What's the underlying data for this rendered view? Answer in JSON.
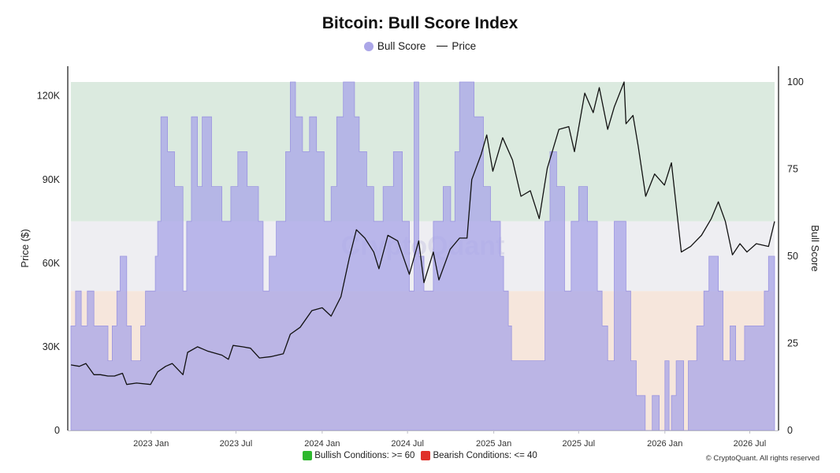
{
  "chart_data": {
    "type": "area",
    "title": "Bitcoin: Bull Score Index",
    "watermark": "CryptoQuant",
    "copyright": "© CryptoQuant. All rights reserved",
    "legend": [
      {
        "name": "Bull Score",
        "marker": "dot",
        "color": "#aba6e8"
      },
      {
        "name": "Price",
        "marker": "line",
        "color": "#111111"
      }
    ],
    "legend_placement": "top-center",
    "ylabel_left": "Price ($)",
    "ylabel_right": "Bull Score",
    "ylim_left": [
      0,
      125000
    ],
    "ylim_right": [
      0,
      100
    ],
    "yticks_left": [
      {
        "v": 0,
        "label": "0"
      },
      {
        "v": 30000,
        "label": "30K"
      },
      {
        "v": 60000,
        "label": "60K"
      },
      {
        "v": 90000,
        "label": "90K"
      },
      {
        "v": 120000,
        "label": "120K"
      }
    ],
    "yticks_right": [
      {
        "v": 0,
        "label": "0"
      },
      {
        "v": 25,
        "label": "25"
      },
      {
        "v": 50,
        "label": "50"
      },
      {
        "v": 75,
        "label": "75"
      },
      {
        "v": 100,
        "label": "100"
      }
    ],
    "xlim": [
      "2022-07-14",
      "2026-08-23"
    ],
    "xticks": [
      {
        "date": "2023-01-01",
        "label": "2023 Jan"
      },
      {
        "date": "2023-07-01",
        "label": "2023 Jul"
      },
      {
        "date": "2024-01-01",
        "label": "2024 Jan"
      },
      {
        "date": "2024-07-01",
        "label": "2024 Jul"
      },
      {
        "date": "2025-01-01",
        "label": "2025 Jan"
      },
      {
        "date": "2025-07-01",
        "label": "2025 Jul"
      },
      {
        "date": "2026-01-01",
        "label": "2026 Jan"
      },
      {
        "date": "2026-07-01",
        "label": "2026 Jul"
      }
    ],
    "zones": [
      {
        "name": "bullish",
        "from": 60,
        "to": 100,
        "color": "#dbeadf"
      },
      {
        "name": "neutral",
        "from": 40,
        "to": 60,
        "color": "#eeeef2"
      },
      {
        "name": "bearish",
        "from": 0,
        "to": 40,
        "color": "#f6e6dc"
      }
    ],
    "notes": [
      {
        "color": "#2eb82e",
        "text": "Bullish Conditions: >= 60"
      },
      {
        "color": "#e0312a",
        "text": "Bearish Conditions: <= 40"
      }
    ],
    "series": [
      {
        "name": "Bull Score",
        "color": "#aba6e8",
        "points": [
          [
            "2022-07-14",
            30
          ],
          [
            "2022-07-24",
            40
          ],
          [
            "2022-08-05",
            30
          ],
          [
            "2022-08-18",
            40
          ],
          [
            "2022-09-01",
            30
          ],
          [
            "2022-10-01",
            20
          ],
          [
            "2022-10-10",
            30
          ],
          [
            "2022-10-20",
            40
          ],
          [
            "2022-10-27",
            50
          ],
          [
            "2022-11-10",
            30
          ],
          [
            "2022-11-20",
            20
          ],
          [
            "2022-12-10",
            30
          ],
          [
            "2022-12-20",
            40
          ],
          [
            "2023-01-02",
            40
          ],
          [
            "2023-01-10",
            50
          ],
          [
            "2023-01-15",
            60
          ],
          [
            "2023-01-22",
            90
          ],
          [
            "2023-02-05",
            80
          ],
          [
            "2023-02-20",
            70
          ],
          [
            "2023-03-10",
            40
          ],
          [
            "2023-03-18",
            60
          ],
          [
            "2023-03-28",
            90
          ],
          [
            "2023-04-10",
            70
          ],
          [
            "2023-04-20",
            90
          ],
          [
            "2023-05-10",
            70
          ],
          [
            "2023-06-01",
            60
          ],
          [
            "2023-06-20",
            70
          ],
          [
            "2023-07-05",
            80
          ],
          [
            "2023-07-25",
            70
          ],
          [
            "2023-08-18",
            60
          ],
          [
            "2023-08-28",
            40
          ],
          [
            "2023-09-10",
            50
          ],
          [
            "2023-09-25",
            60
          ],
          [
            "2023-10-15",
            80
          ],
          [
            "2023-10-25",
            100
          ],
          [
            "2023-11-05",
            90
          ],
          [
            "2023-11-20",
            80
          ],
          [
            "2023-12-05",
            90
          ],
          [
            "2023-12-20",
            80
          ],
          [
            "2024-01-05",
            60
          ],
          [
            "2024-01-20",
            70
          ],
          [
            "2024-02-01",
            90
          ],
          [
            "2024-02-15",
            100
          ],
          [
            "2024-03-10",
            90
          ],
          [
            "2024-03-20",
            80
          ],
          [
            "2024-04-05",
            70
          ],
          [
            "2024-04-20",
            60
          ],
          [
            "2024-05-10",
            70
          ],
          [
            "2024-06-01",
            80
          ],
          [
            "2024-06-20",
            60
          ],
          [
            "2024-07-05",
            40
          ],
          [
            "2024-07-15",
            100
          ],
          [
            "2024-07-25",
            50
          ],
          [
            "2024-08-05",
            40
          ],
          [
            "2024-08-25",
            60
          ],
          [
            "2024-09-15",
            70
          ],
          [
            "2024-10-01",
            60
          ],
          [
            "2024-10-10",
            80
          ],
          [
            "2024-10-20",
            100
          ],
          [
            "2024-11-20",
            90
          ],
          [
            "2024-12-10",
            70
          ],
          [
            "2024-12-25",
            60
          ],
          [
            "2025-01-15",
            50
          ],
          [
            "2025-01-22",
            40
          ],
          [
            "2025-02-01",
            30
          ],
          [
            "2025-02-08",
            20
          ],
          [
            "2025-02-20",
            20
          ],
          [
            "2025-03-10",
            20
          ],
          [
            "2025-03-20",
            20
          ],
          [
            "2025-04-10",
            20
          ],
          [
            "2025-04-20",
            60
          ],
          [
            "2025-05-01",
            80
          ],
          [
            "2025-05-15",
            70
          ],
          [
            "2025-06-01",
            40
          ],
          [
            "2025-06-15",
            60
          ],
          [
            "2025-07-01",
            70
          ],
          [
            "2025-07-20",
            60
          ],
          [
            "2025-08-01",
            60
          ],
          [
            "2025-08-10",
            40
          ],
          [
            "2025-08-20",
            30
          ],
          [
            "2025-09-01",
            20
          ],
          [
            "2025-09-15",
            60
          ],
          [
            "2025-10-01",
            60
          ],
          [
            "2025-10-10",
            40
          ],
          [
            "2025-10-20",
            20
          ],
          [
            "2025-11-01",
            10
          ],
          [
            "2025-11-20",
            0
          ],
          [
            "2025-12-05",
            10
          ],
          [
            "2025-12-20",
            0
          ],
          [
            "2026-01-01",
            20
          ],
          [
            "2026-01-10",
            0
          ],
          [
            "2026-01-15",
            10
          ],
          [
            "2026-01-25",
            20
          ],
          [
            "2026-02-10",
            0
          ],
          [
            "2026-02-20",
            20
          ],
          [
            "2026-03-10",
            30
          ],
          [
            "2026-03-25",
            40
          ],
          [
            "2026-04-05",
            50
          ],
          [
            "2026-04-25",
            40
          ],
          [
            "2026-05-05",
            20
          ],
          [
            "2026-05-20",
            30
          ],
          [
            "2026-06-01",
            20
          ],
          [
            "2026-06-20",
            30
          ],
          [
            "2026-07-05",
            30
          ],
          [
            "2026-07-20",
            30
          ],
          [
            "2026-08-01",
            40
          ],
          [
            "2026-08-10",
            50
          ],
          [
            "2026-08-20",
            50
          ]
        ]
      },
      {
        "name": "Price",
        "color": "#111111",
        "points": [
          [
            "2022-07-14",
            23500
          ],
          [
            "2022-08-01",
            23000
          ],
          [
            "2022-08-15",
            24000
          ],
          [
            "2022-09-01",
            20000
          ],
          [
            "2022-09-15",
            20000
          ],
          [
            "2022-10-01",
            19500
          ],
          [
            "2022-10-15",
            19500
          ],
          [
            "2022-11-01",
            20500
          ],
          [
            "2022-11-10",
            16500
          ],
          [
            "2022-12-01",
            17000
          ],
          [
            "2022-12-31",
            16500
          ],
          [
            "2023-01-15",
            21000
          ],
          [
            "2023-02-01",
            23000
          ],
          [
            "2023-02-15",
            24000
          ],
          [
            "2023-03-10",
            20000
          ],
          [
            "2023-03-20",
            28000
          ],
          [
            "2023-04-10",
            30000
          ],
          [
            "2023-05-01",
            28500
          ],
          [
            "2023-06-01",
            27000
          ],
          [
            "2023-06-15",
            25500
          ],
          [
            "2023-06-25",
            30500
          ],
          [
            "2023-07-15",
            30000
          ],
          [
            "2023-08-01",
            29500
          ],
          [
            "2023-08-20",
            26000
          ],
          [
            "2023-09-15",
            26500
          ],
          [
            "2023-10-10",
            27500
          ],
          [
            "2023-10-25",
            34500
          ],
          [
            "2023-11-15",
            37000
          ],
          [
            "2023-12-10",
            43000
          ],
          [
            "2024-01-01",
            44000
          ],
          [
            "2024-01-20",
            41000
          ],
          [
            "2024-02-10",
            48000
          ],
          [
            "2024-02-28",
            62000
          ],
          [
            "2024-03-14",
            72000
          ],
          [
            "2024-04-01",
            69000
          ],
          [
            "2024-04-20",
            64000
          ],
          [
            "2024-05-01",
            58000
          ],
          [
            "2024-05-20",
            70000
          ],
          [
            "2024-06-10",
            68000
          ],
          [
            "2024-07-05",
            56000
          ],
          [
            "2024-07-25",
            68000
          ],
          [
            "2024-08-05",
            53000
          ],
          [
            "2024-08-25",
            64000
          ],
          [
            "2024-09-06",
            54000
          ],
          [
            "2024-09-30",
            65000
          ],
          [
            "2024-10-20",
            69000
          ],
          [
            "2024-11-05",
            69000
          ],
          [
            "2024-11-15",
            90000
          ],
          [
            "2024-12-05",
            99000
          ],
          [
            "2024-12-17",
            106000
          ],
          [
            "2024-12-30",
            93000
          ],
          [
            "2025-01-20",
            105000
          ],
          [
            "2025-02-10",
            97000
          ],
          [
            "2025-02-28",
            84000
          ],
          [
            "2025-03-20",
            86000
          ],
          [
            "2025-04-08",
            76000
          ],
          [
            "2025-04-25",
            94000
          ],
          [
            "2025-05-20",
            108000
          ],
          [
            "2025-06-10",
            109000
          ],
          [
            "2025-06-22",
            100000
          ],
          [
            "2025-07-14",
            121000
          ],
          [
            "2025-08-01",
            114000
          ],
          [
            "2025-08-14",
            123000
          ],
          [
            "2025-09-01",
            108000
          ],
          [
            "2025-09-15",
            116000
          ],
          [
            "2025-10-06",
            125000
          ],
          [
            "2025-10-10",
            110000
          ],
          [
            "2025-10-25",
            113000
          ],
          [
            "2025-11-05",
            102000
          ],
          [
            "2025-11-21",
            84000
          ],
          [
            "2025-12-10",
            92000
          ],
          [
            "2025-12-31",
            88000
          ],
          [
            "2026-01-15",
            96000
          ],
          [
            "2026-02-05",
            64000
          ],
          [
            "2026-02-25",
            66000
          ],
          [
            "2026-03-20",
            70000
          ],
          [
            "2026-04-10",
            76000
          ],
          [
            "2026-04-25",
            82000
          ],
          [
            "2026-05-10",
            75000
          ],
          [
            "2026-05-25",
            63000
          ],
          [
            "2026-06-10",
            67000
          ],
          [
            "2026-06-25",
            64000
          ],
          [
            "2026-07-15",
            67000
          ],
          [
            "2026-08-10",
            66000
          ],
          [
            "2026-08-23",
            75000
          ]
        ]
      }
    ]
  }
}
